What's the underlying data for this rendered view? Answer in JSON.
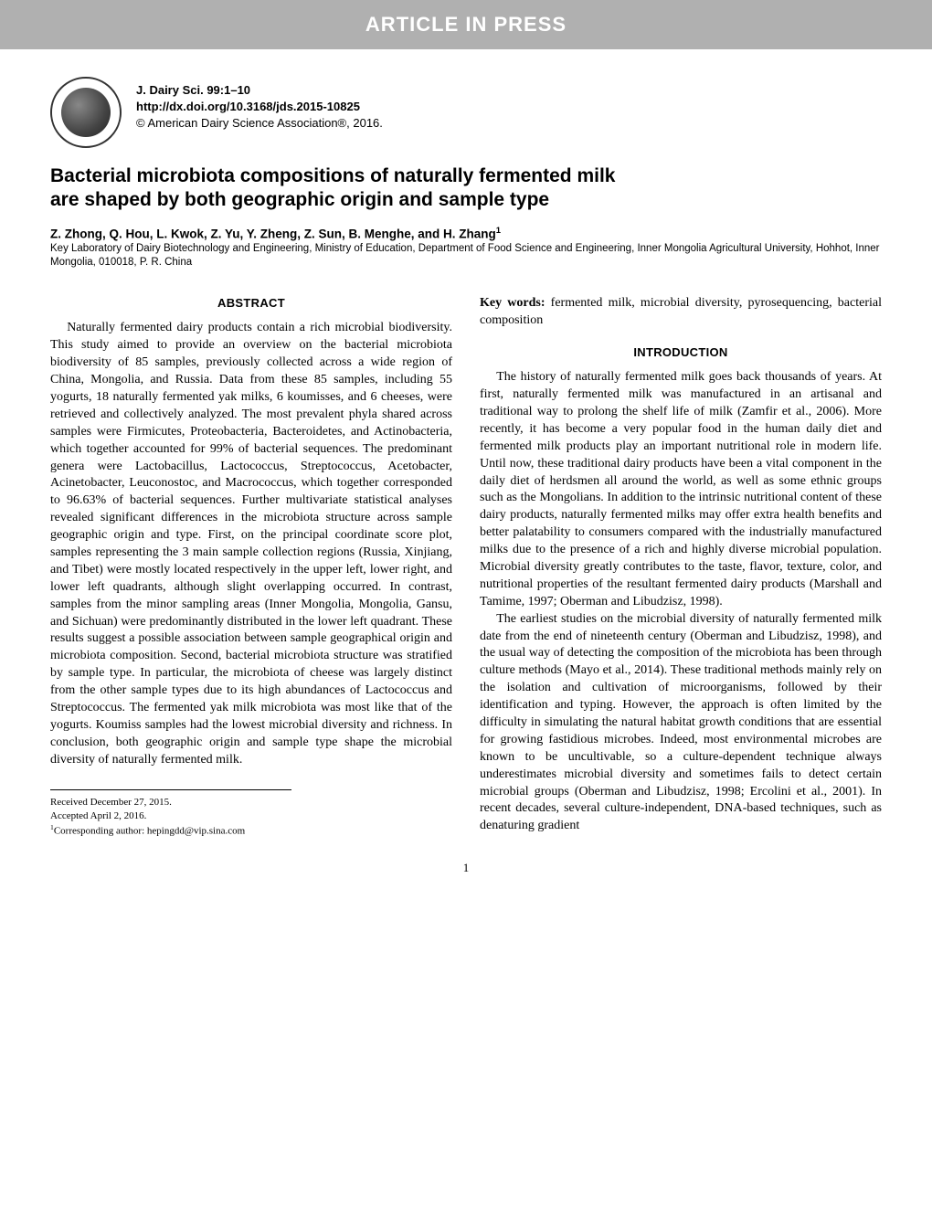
{
  "banner": "ARTICLE IN PRESS",
  "journal": {
    "citation": "J. Dairy Sci. 99:1–10",
    "doi": "http://dx.doi.org/10.3168/jds.2015-10825",
    "copyright": "© American Dairy Science Association®, 2016."
  },
  "title_line1": "Bacterial microbiota compositions of naturally fermented milk",
  "title_line2": "are shaped by both geographic origin and sample type",
  "authors": "Z. Zhong, Q. Hou, L. Kwok, Z. Yu, Y. Zheng, Z. Sun, B. Menghe, and H. Zhang",
  "author_sup": "1",
  "affiliation": "Key Laboratory of Dairy Biotechnology and Engineering, Ministry of Education, Department of Food Science and Engineering, Inner Mongolia Agricultural University, Hohhot, Inner Mongolia, 010018, P. R. China",
  "sections": {
    "abstract_head": "ABSTRACT",
    "abstract_text": "Naturally fermented dairy products contain a rich microbial biodiversity. This study aimed to provide an overview on the bacterial microbiota biodiversity of 85 samples, previously collected across a wide region of China, Mongolia, and Russia. Data from these 85 samples, including 55 yogurts, 18 naturally fermented yak milks, 6 koumisses, and 6 cheeses, were retrieved and collectively analyzed. The most prevalent phyla shared across samples were Firmicutes, Proteobacteria, Bacteroidetes, and Actinobacteria, which together accounted for 99% of bacterial sequences. The predominant genera were Lactobacillus, Lactococcus, Streptococcus, Acetobacter, Acinetobacter, Leuconostoc, and Macrococcus, which together corresponded to 96.63% of bacterial sequences. Further multivariate statistical analyses revealed significant differences in the microbiota structure across sample geographic origin and type. First, on the principal coordinate score plot, samples representing the 3 main sample collection regions (Russia, Xinjiang, and Tibet) were mostly located respectively in the upper left, lower right, and lower left quadrants, although slight overlapping occurred. In contrast, samples from the minor sampling areas (Inner Mongolia, Mongolia, Gansu, and Sichuan) were predominantly distributed in the lower left quadrant. These results suggest a possible association between sample geographical origin and microbiota composition. Second, bacterial microbiota structure was stratified by sample type. In particular, the microbiota of cheese was largely distinct from the other sample types due to its high abundances of Lactococcus and Streptococcus. The fermented yak milk microbiota was most like that of the yogurts. Koumiss samples had the lowest microbial diversity and richness. In conclusion, both geographic origin and sample type shape the microbial diversity of naturally fermented milk.",
    "keywords_label": "Key words:",
    "keywords_text": " fermented milk, microbial diversity, pyrosequencing, bacterial composition",
    "intro_head": "INTRODUCTION",
    "intro_p1": "The history of naturally fermented milk goes back thousands of years. At first, naturally fermented milk was manufactured in an artisanal and traditional way to prolong the shelf life of milk (Zamfir et al., 2006). More recently, it has become a very popular food in the human daily diet and fermented milk products play an important nutritional role in modern life. Until now, these traditional dairy products have been a vital component in the daily diet of herdsmen all around the world, as well as some ethnic groups such as the Mongolians. In addition to the intrinsic nutritional content of these dairy products, naturally fermented milks may offer extra health benefits and better palatability to consumers compared with the industrially manufactured milks due to the presence of a rich and highly diverse microbial population. Microbial diversity greatly contributes to the taste, flavor, texture, color, and nutritional properties of the resultant fermented dairy products (Marshall and Tamime, 1997; Oberman and Libudzisz, 1998).",
    "intro_p2": "The earliest studies on the microbial diversity of naturally fermented milk date from the end of nineteenth century (Oberman and Libudzisz, 1998), and the usual way of detecting the composition of the microbiota has been through culture methods (Mayo et al., 2014). These traditional methods mainly rely on the isolation and cultivation of microorganisms, followed by their identification and typing. However, the approach is often limited by the difficulty in simulating the natural habitat growth conditions that are essential for growing fastidious microbes. Indeed, most environmental microbes are known to be uncultivable, so a culture-dependent technique always underestimates microbial diversity and sometimes fails to detect certain microbial groups (Oberman and Libudzisz, 1998; Ercolini et al., 2001). In recent decades, several culture-independent, DNA-based techniques, such as denaturing gradient"
  },
  "footnotes": {
    "received": "Received December 27, 2015.",
    "accepted": "Accepted April 2, 2016.",
    "corresponding_sup": "1",
    "corresponding": "Corresponding author: hepingdd@vip.sina.com"
  },
  "page_number": "1",
  "colors": {
    "banner_bg": "#b0b0b0",
    "banner_text": "#ffffff",
    "text": "#000000",
    "background": "#ffffff"
  }
}
